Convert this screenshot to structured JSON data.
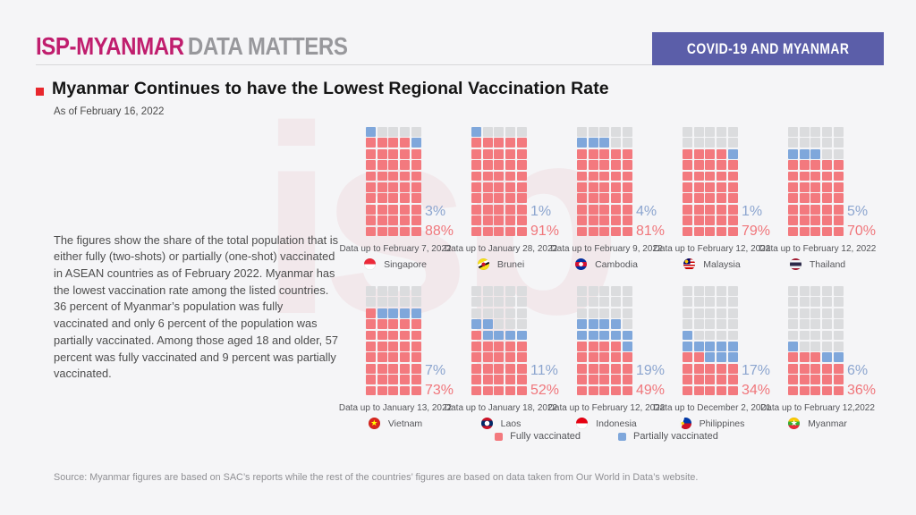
{
  "header": {
    "logo_primary": "ISP-MYANMAR",
    "logo_secondary": "DATA MATTERS",
    "banner": "COVID-19 AND MYANMAR"
  },
  "title": {
    "text": "Myanmar Continues to have the Lowest Regional Vaccination Rate",
    "as_of": "As of February 16, 2022"
  },
  "description": "The figures show the share of the total population that is either fully (two-shots) or partially (one-shot) vaccinated in ASEAN countries as of February 2022. Myanmar has the lowest vaccination rate among the listed countries. 36 percent of Myanmar’s population was fully vaccinated and only 6 percent of the population was partially vaccinated. Among those aged 18 and older, 57 percent was fully vaccinated and 9 percent was partially vaccinated.",
  "legend": {
    "fully": "Fully vaccinated",
    "partially": "Partially vaccinated"
  },
  "source": "Source: Myanmar figures are based on SAC’s reports while the rest of the countries’ figures are based on data taken from Our World in Data’s website.",
  "watermark_text": "isp",
  "colors": {
    "fully_vaccinated": "#F3797E",
    "partially_vaccinated": "#7FA7DB",
    "empty_cell": "#DBDCDE",
    "accent_magenta": "#C01E6E",
    "banner_purple": "#5B5EA9",
    "bullet_red": "#E8272D"
  },
  "chart_data": {
    "type": "waffle",
    "grid": {
      "columns": 5,
      "rows": 10,
      "percent_per_cell": 2
    },
    "legend": [
      "Fully vaccinated",
      "Partially vaccinated"
    ],
    "series": [
      {
        "country": "Singapore",
        "flag": "singapore",
        "date_note": "Data up to February 7, 2022",
        "partially_pct": 3,
        "fully_pct": 88
      },
      {
        "country": "Brunei",
        "flag": "brunei",
        "date_note": "Data up to January 28, 2022",
        "partially_pct": 1,
        "fully_pct": 91
      },
      {
        "country": "Cambodia",
        "flag": "cambodia",
        "date_note": "Data up to February 9, 2022",
        "partially_pct": 4,
        "fully_pct": 81
      },
      {
        "country": "Malaysia",
        "flag": "malaysia",
        "date_note": "Data up to February 12, 2022",
        "partially_pct": 1,
        "fully_pct": 79
      },
      {
        "country": "Thailand",
        "flag": "thailand",
        "date_note": "Data up to February 12, 2022",
        "partially_pct": 5,
        "fully_pct": 70
      },
      {
        "country": "Vietnam",
        "flag": "vietnam",
        "date_note": "Data up to January 13, 2022",
        "partially_pct": 7,
        "fully_pct": 73
      },
      {
        "country": "Laos",
        "flag": "laos",
        "date_note": "Data up to January 18, 2022",
        "partially_pct": 11,
        "fully_pct": 52
      },
      {
        "country": "Indonesia",
        "flag": "indonesia",
        "date_note": "Data up to February 12, 2022",
        "partially_pct": 19,
        "fully_pct": 49
      },
      {
        "country": "Philippines",
        "flag": "philippines",
        "date_note": "Data up to December 2, 2021",
        "partially_pct": 17,
        "fully_pct": 34
      },
      {
        "country": "Myanmar",
        "flag": "myanmar",
        "date_note": "Data up to February 12,2022",
        "partially_pct": 6,
        "fully_pct": 36
      }
    ]
  }
}
